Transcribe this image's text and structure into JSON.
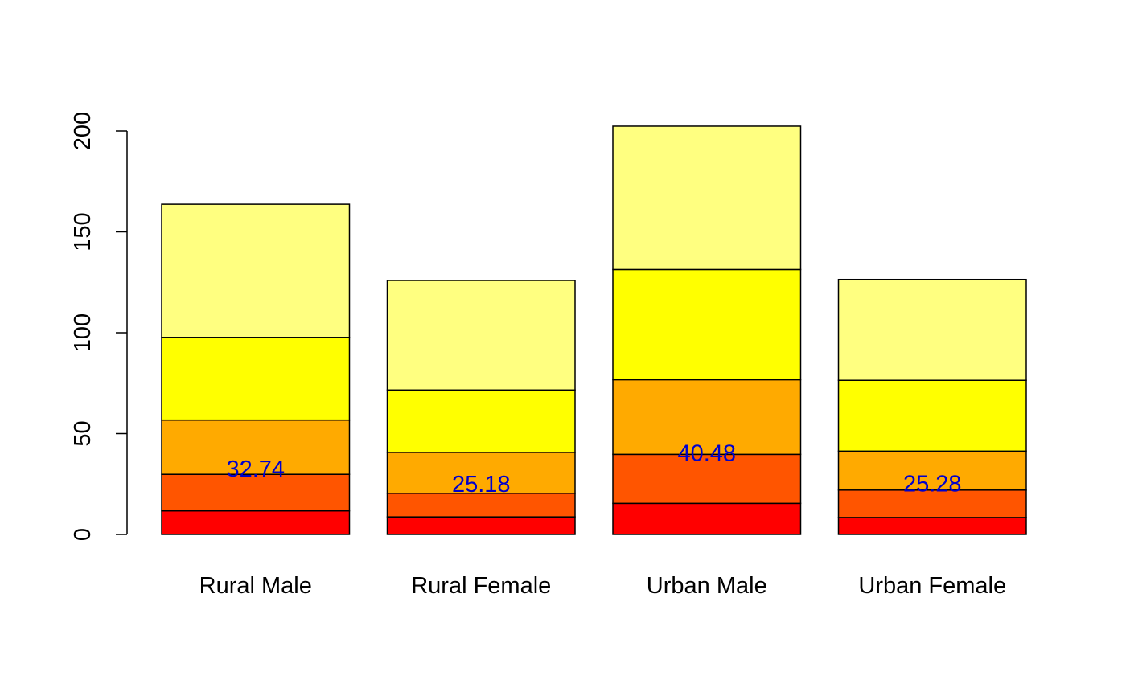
{
  "chart_data": {
    "type": "bar",
    "stacked": true,
    "title": "",
    "xlabel": "",
    "ylabel": "",
    "ylim": [
      0,
      200
    ],
    "yticks": [
      0,
      50,
      100,
      150,
      200
    ],
    "ytick_labels": [
      "0",
      "50",
      "100",
      "150",
      "200"
    ],
    "grid": false,
    "legend": "none",
    "categories": [
      "Rural Male",
      "Rural Female",
      "Urban Male",
      "Urban Female"
    ],
    "series": [
      {
        "color": "#FF0000",
        "values": [
          11.7,
          8.7,
          15.4,
          8.4
        ]
      },
      {
        "color": "#FF5500",
        "values": [
          18.1,
          11.7,
          24.3,
          13.6
        ]
      },
      {
        "color": "#FFAA00",
        "values": [
          26.9,
          20.3,
          37.0,
          19.3
        ]
      },
      {
        "color": "#FFFF00",
        "values": [
          41.0,
          30.9,
          54.6,
          35.1
        ]
      },
      {
        "color": "#FFFF80",
        "values": [
          66.0,
          54.3,
          71.1,
          50.0
        ]
      }
    ],
    "data_labels": {
      "color": "#0000CC",
      "values": [
        "32.74",
        "25.18",
        "40.48",
        "25.28"
      ]
    }
  }
}
